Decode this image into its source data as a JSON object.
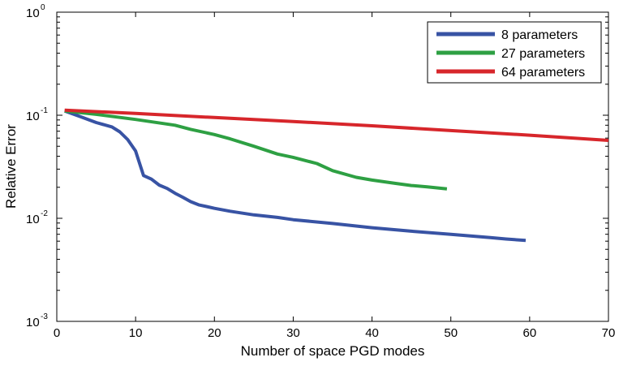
{
  "chart_data": {
    "type": "line",
    "xlabel": "Number of space PGD modes",
    "ylabel": "Relative Error",
    "xlim": [
      0,
      70
    ],
    "ylim": [
      0.001,
      1
    ],
    "yscale": "log",
    "grid": false,
    "legend_position": "top-right",
    "x_ticks": [
      "0",
      "10",
      "20",
      "30",
      "40",
      "50",
      "60",
      "70"
    ],
    "y_ticks": [
      {
        "base": "10",
        "exp": "0",
        "value": 1
      },
      {
        "base": "10",
        "exp": "-1",
        "value": 0.1
      },
      {
        "base": "10",
        "exp": "-2",
        "value": 0.01
      },
      {
        "base": "10",
        "exp": "-3",
        "value": 0.001
      }
    ],
    "series": [
      {
        "name": "8 parameters",
        "color": "#3853a4",
        "x": [
          1,
          3,
          5,
          7,
          8,
          9,
          10,
          11,
          12,
          13,
          14,
          15,
          16,
          17,
          18,
          19,
          20,
          22,
          25,
          28,
          30,
          35,
          40,
          45,
          50,
          55,
          57,
          59.5
        ],
        "y": [
          0.11,
          0.097,
          0.085,
          0.077,
          0.069,
          0.058,
          0.045,
          0.026,
          0.024,
          0.021,
          0.0195,
          0.0175,
          0.016,
          0.0145,
          0.0135,
          0.013,
          0.0125,
          0.0117,
          0.0108,
          0.0102,
          0.0097,
          0.0089,
          0.0081,
          0.0075,
          0.007,
          0.0065,
          0.0063,
          0.0061
        ]
      },
      {
        "name": "27 parameters",
        "color": "#2ea043",
        "x": [
          1,
          5,
          10,
          15,
          17,
          20,
          22,
          25,
          28,
          30,
          33,
          35,
          38,
          40,
          43,
          45,
          47,
          49.5
        ],
        "y": [
          0.11,
          0.102,
          0.091,
          0.08,
          0.073,
          0.065,
          0.059,
          0.05,
          0.042,
          0.039,
          0.034,
          0.029,
          0.025,
          0.0235,
          0.0218,
          0.0208,
          0.0202,
          0.0193
        ]
      },
      {
        "name": "64 parameters",
        "color": "#d7262b",
        "x": [
          1,
          10,
          20,
          30,
          40,
          50,
          60,
          70
        ],
        "y": [
          0.112,
          0.104,
          0.095,
          0.087,
          0.079,
          0.071,
          0.064,
          0.057
        ]
      }
    ]
  }
}
